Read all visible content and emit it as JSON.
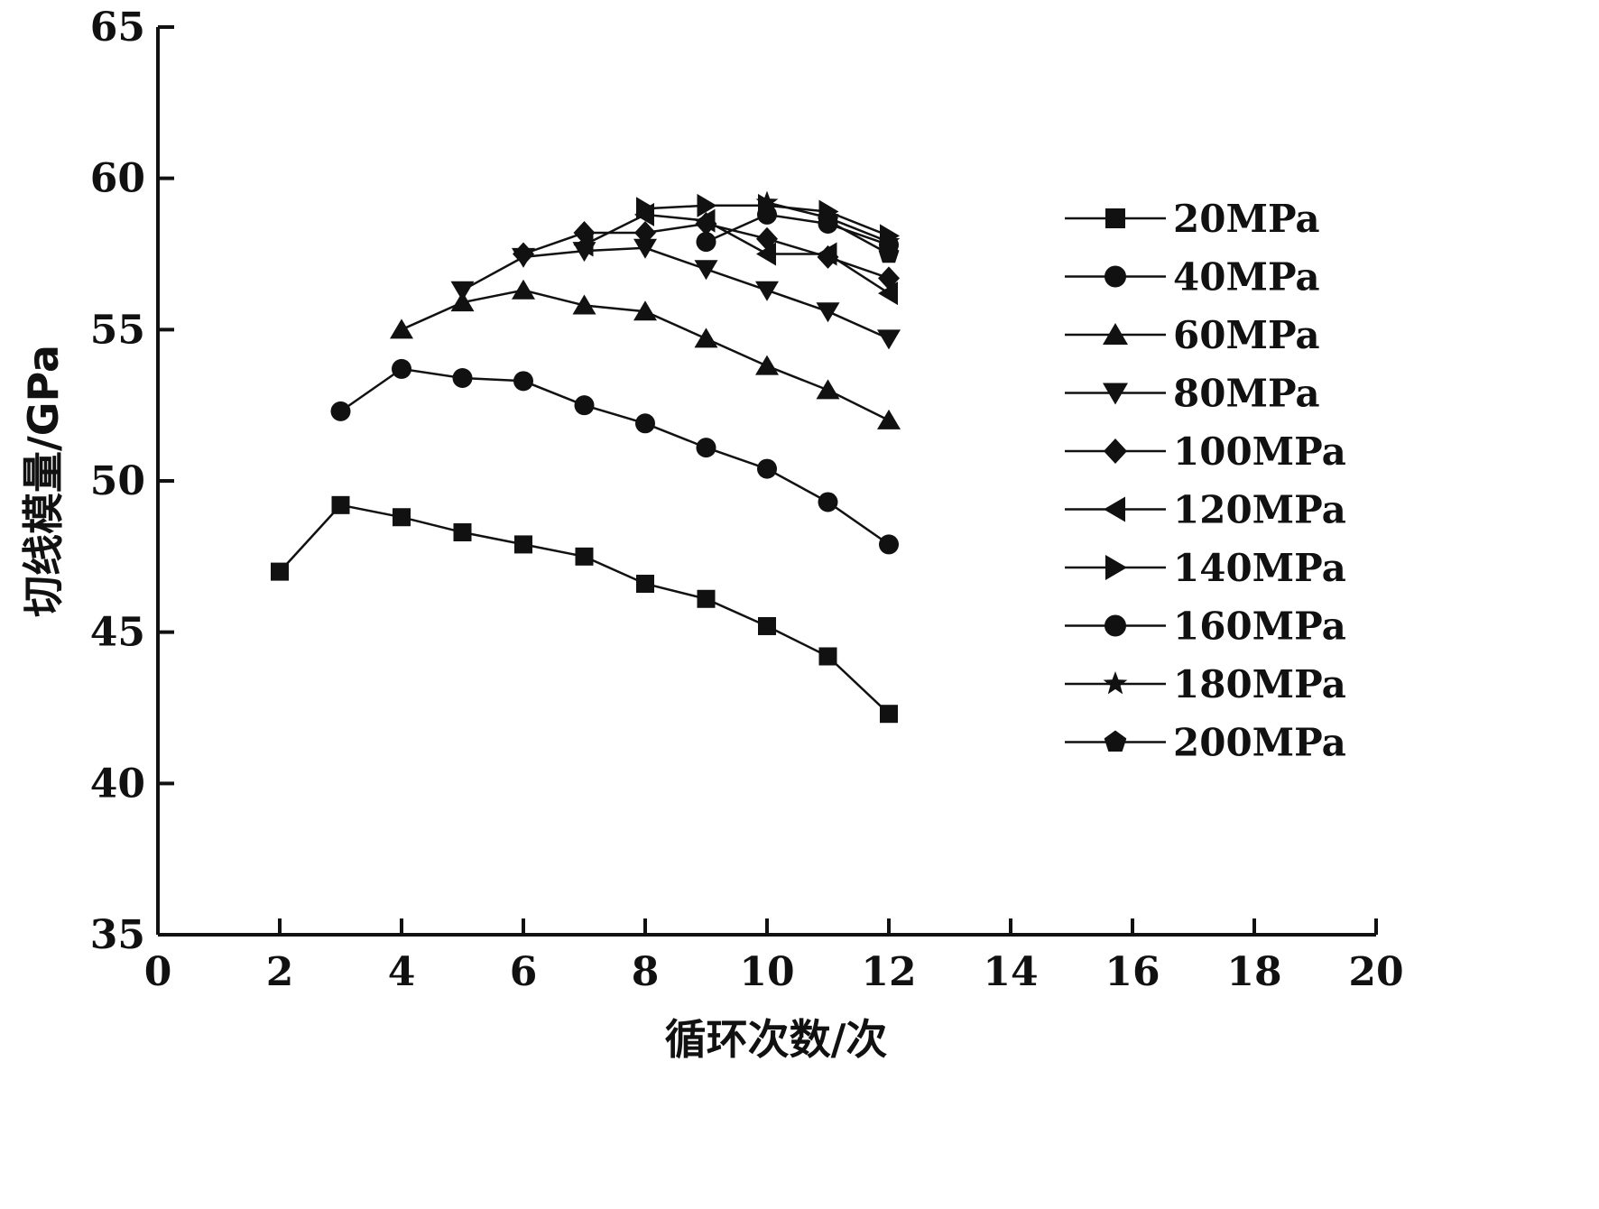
{
  "chart_data": {
    "type": "line",
    "xlabel": "循环次数/次",
    "ylabel": "切线模量/GPa",
    "xlim": [
      0,
      20
    ],
    "ylim": [
      35,
      65
    ],
    "xticks": [
      0,
      2,
      4,
      6,
      8,
      10,
      12,
      14,
      16,
      18,
      20
    ],
    "yticks": [
      35,
      40,
      45,
      50,
      55,
      60,
      65
    ],
    "grid": false,
    "legend_position": "right",
    "series": [
      {
        "name": "20MPa",
        "marker": "square",
        "x": [
          2,
          3,
          4,
          5,
          6,
          7,
          8,
          9,
          10,
          11,
          12
        ],
        "y": [
          47.0,
          49.2,
          48.8,
          48.3,
          47.9,
          47.5,
          46.6,
          46.1,
          45.2,
          44.2,
          42.3
        ]
      },
      {
        "name": "40MPa",
        "marker": "circle",
        "x": [
          3,
          4,
          5,
          6,
          7,
          8,
          9,
          10,
          11,
          12
        ],
        "y": [
          52.3,
          53.7,
          53.4,
          53.3,
          52.5,
          51.9,
          51.1,
          50.4,
          49.3,
          47.9
        ]
      },
      {
        "name": "60MPa",
        "marker": "triangle-up",
        "x": [
          4,
          5,
          6,
          7,
          8,
          9,
          10,
          11,
          12
        ],
        "y": [
          55.0,
          55.9,
          56.3,
          55.8,
          55.6,
          54.7,
          53.8,
          53.0,
          52.0
        ]
      },
      {
        "name": "80MPa",
        "marker": "triangle-down",
        "x": [
          5,
          6,
          7,
          8,
          9,
          10,
          11,
          12
        ],
        "y": [
          56.3,
          57.4,
          57.6,
          57.7,
          57.0,
          56.3,
          55.6,
          54.7
        ]
      },
      {
        "name": "100MPa",
        "marker": "diamond",
        "x": [
          6,
          7,
          8,
          9,
          10,
          11,
          12
        ],
        "y": [
          57.5,
          58.2,
          58.2,
          58.5,
          58.0,
          57.4,
          56.7
        ]
      },
      {
        "name": "120MPa",
        "marker": "triangle-left",
        "x": [
          7,
          8,
          9,
          10,
          11,
          12
        ],
        "y": [
          57.8,
          58.8,
          58.6,
          57.5,
          57.5,
          56.2
        ]
      },
      {
        "name": "140MPa",
        "marker": "triangle-right",
        "x": [
          8,
          9,
          10,
          11,
          12
        ],
        "y": [
          59.0,
          59.1,
          59.1,
          58.9,
          58.1
        ]
      },
      {
        "name": "160MPa",
        "marker": "circle",
        "x": [
          9,
          10,
          11,
          12
        ],
        "y": [
          57.9,
          58.8,
          58.5,
          57.8
        ]
      },
      {
        "name": "180MPa",
        "marker": "star",
        "x": [
          10,
          11,
          12
        ],
        "y": [
          59.2,
          58.7,
          57.9
        ]
      },
      {
        "name": "200MPa",
        "marker": "pentagon",
        "x": [
          11,
          12
        ],
        "y": [
          58.6,
          57.5
        ]
      }
    ]
  }
}
